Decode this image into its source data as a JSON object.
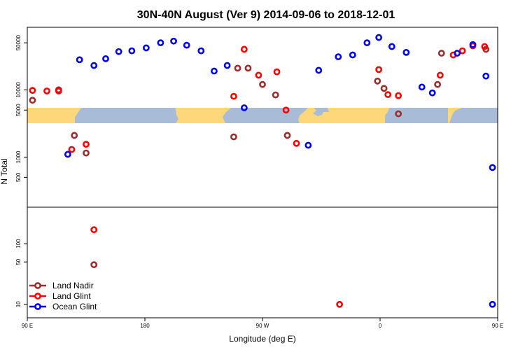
{
  "chart_data": {
    "type": "scatter",
    "title": "30N-40N August (Ver 9)   2014-09-06 to 2018-12-01",
    "xlabel": "Longitude (deg E)",
    "ylabel": "N Total",
    "xlim": [
      90,
      450
    ],
    "x_ticks": [
      {
        "value": 90,
        "label": "90 E"
      },
      {
        "value": 180,
        "label": "180"
      },
      {
        "value": 270,
        "label": "90 W"
      },
      {
        "value": 360,
        "label": "0"
      },
      {
        "value": 450,
        "label": "90 E"
      },
      {
        "value": 540,
        "label": "180"
      }
    ],
    "panels": [
      {
        "name": "top",
        "y_scale": "log",
        "ylim": [
          180,
          85000
        ],
        "y_ticks": [
          {
            "value": 500,
            "label": "500"
          },
          {
            "value": 1000,
            "label": "1000"
          },
          {
            "value": 5000,
            "label": "5000"
          },
          {
            "value": 10000,
            "label": "10000"
          },
          {
            "value": 50000,
            "label": "50000"
          }
        ]
      },
      {
        "name": "bottom",
        "y_scale": "log",
        "ylim": [
          6,
          400
        ],
        "y_ticks": [
          {
            "value": 10,
            "label": "10"
          },
          {
            "value": 50,
            "label": "50"
          },
          {
            "value": 100,
            "label": "100"
          }
        ]
      }
    ],
    "legend": {
      "position": "bottom-left"
    },
    "series": [
      {
        "name": "Land Nadir",
        "color": "#9b2d2d",
        "panel_points": {
          "top": [
            [
              94,
              7000
            ],
            [
              114,
              10000
            ],
            [
              126,
              2100
            ],
            [
              135,
              1150
            ],
            [
              248,
              2000
            ],
            [
              251,
              21000
            ],
            [
              259,
              21000
            ],
            [
              270,
              12000
            ],
            [
              280,
              8400
            ],
            [
              289,
              2100
            ],
            [
              358,
              13500
            ],
            [
              363,
              10500
            ],
            [
              374,
              4400
            ],
            [
              404,
              12000
            ],
            [
              407,
              35000
            ],
            [
              441,
              40000
            ],
            [
              455,
              3500
            ],
            [
              466,
              4200
            ],
            [
              475,
              7000
            ],
            [
              488,
              10000
            ],
            [
              492,
              2100
            ],
            [
              503,
              1150
            ]
          ],
          "bottom": [
            [
              141,
              45
            ]
          ]
        }
      },
      {
        "name": "Land Glint",
        "color": "#ff0000",
        "panel_points": {
          "top": [
            [
              94,
              9800
            ],
            [
              105,
              9600
            ],
            [
              114,
              9600
            ],
            [
              124,
              1300
            ],
            [
              135,
              1550
            ],
            [
              141,
              170000
            ],
            [
              248,
              8000
            ],
            [
              256,
              40000
            ],
            [
              267,
              16500
            ],
            [
              281,
              18500
            ],
            [
              288,
              5000
            ],
            [
              296,
              1600
            ],
            [
              329,
              10
            ],
            [
              359,
              20000
            ],
            [
              366,
              8500
            ],
            [
              374,
              8200
            ],
            [
              406,
              16500
            ],
            [
              416,
              33000
            ],
            [
              423,
              38000
            ],
            [
              431,
              45000
            ],
            [
              440,
              44000
            ],
            [
              454,
              3200
            ],
            [
              465,
              5500
            ],
            [
              474,
              9800
            ],
            [
              487,
              9700
            ],
            [
              498,
              9600
            ],
            [
              506,
              1300
            ],
            [
              515,
              1550
            ],
            [
              522,
              170000
            ]
          ],
          "bottom": [
            [
              141,
              170
            ],
            [
              329,
              10
            ],
            [
              523,
              170
            ]
          ]
        }
      },
      {
        "name": "Ocean Glint",
        "color": "#0000ff",
        "panel_points": {
          "top": [
            [
              121,
              1100
            ],
            [
              130,
              28000
            ],
            [
              141,
              23000
            ],
            [
              150,
              29000
            ],
            [
              160,
              37000
            ],
            [
              170,
              38000
            ],
            [
              181,
              42000
            ],
            [
              192,
              50000
            ],
            [
              202,
              53000
            ],
            [
              212,
              46000
            ],
            [
              223,
              38000
            ],
            [
              233,
              19000
            ],
            [
              243,
              23000
            ],
            [
              256,
              5400
            ],
            [
              305,
              1500
            ],
            [
              313,
              19500
            ],
            [
              328,
              31000
            ],
            [
              339,
              33000
            ],
            [
              350,
              50000
            ],
            [
              359,
              60000
            ],
            [
              369,
              44000
            ],
            [
              380,
              36000
            ],
            [
              392,
              11000
            ],
            [
              400,
              9000
            ],
            [
              419,
              35000
            ],
            [
              431,
              47000
            ],
            [
              441,
              16000
            ],
            [
              446,
              700
            ],
            [
              451,
              950
            ],
            [
              510,
              1100
            ],
            [
              517,
              28000
            ],
            [
              528,
              23000
            ],
            [
              537,
              29000
            ],
            [
              548,
              37000
            ],
            [
              559,
              38000
            ],
            [
              570,
              42000
            ]
          ],
          "bottom": [
            [
              446,
              10
            ]
          ]
        }
      }
    ]
  }
}
